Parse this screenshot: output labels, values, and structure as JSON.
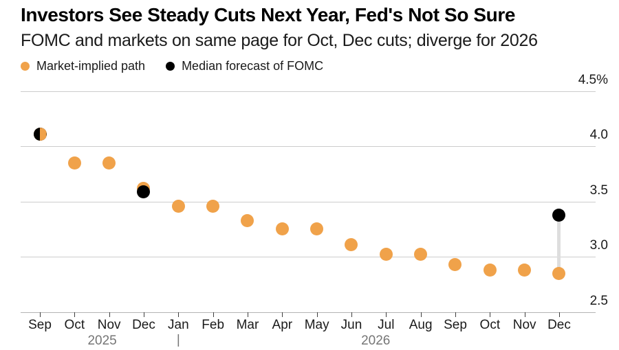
{
  "header": {
    "title": "Investors See Steady Cuts Next Year, Fed's Not So Sure",
    "subtitle": "FOMC and markets on same page for Oct, Dec cuts; diverge for 2026"
  },
  "legend": {
    "items": [
      {
        "label": "Market-implied path",
        "color": "#F0A24A"
      },
      {
        "label": "Median forecast of FOMC",
        "color": "#000000"
      }
    ]
  },
  "colors": {
    "market_orange": "#F0A24A",
    "fomc_black": "#000000",
    "gridline_gray": "#cccccc",
    "connector_gray": "#dedede",
    "year_text_gray": "#757575",
    "text_dark": "#1a1a1a"
  },
  "chart_data": {
    "type": "scatter",
    "title": "Investors See Steady Cuts Next Year, Fed's Not So Sure",
    "subtitle": "FOMC and markets on same page for Oct, Dec cuts; diverge for 2026",
    "categories": [
      "Sep",
      "Oct",
      "Nov",
      "Dec",
      "Jan",
      "Feb",
      "Mar",
      "Apr",
      "May",
      "Jun",
      "Jul",
      "Aug",
      "Sep",
      "Oct",
      "Nov",
      "Dec"
    ],
    "year_labels": [
      {
        "text": "2025",
        "center_index": 1.8
      },
      {
        "text": "2026",
        "center_index": 9.7
      }
    ],
    "year_divider": {
      "glyph": "|",
      "index": 4
    },
    "series": [
      {
        "name": "Market-implied path",
        "color": "#F0A24A",
        "values": [
          4.11,
          3.85,
          3.85,
          3.62,
          3.46,
          3.46,
          3.33,
          3.25,
          3.25,
          3.11,
          3.02,
          3.02,
          2.93,
          2.88,
          2.88,
          2.85
        ]
      },
      {
        "name": "Median forecast of FOMC",
        "color": "#000000",
        "values": [
          4.11,
          null,
          null,
          3.59,
          null,
          null,
          null,
          null,
          null,
          null,
          null,
          null,
          null,
          null,
          null,
          3.38
        ]
      }
    ],
    "yticks": [
      {
        "value": 4.5,
        "label": "4.5%"
      },
      {
        "value": 4.0,
        "label": "4.0"
      },
      {
        "value": 3.5,
        "label": "3.5"
      },
      {
        "value": 3.0,
        "label": "3.0"
      },
      {
        "value": 2.5,
        "label": "2.5"
      }
    ],
    "ylim": [
      2.5,
      4.5
    ],
    "grid": "horizontal",
    "legend_position": "top-left",
    "connector": {
      "index": 15,
      "between_series": [
        1,
        0
      ]
    },
    "split_marker_index": 0
  }
}
